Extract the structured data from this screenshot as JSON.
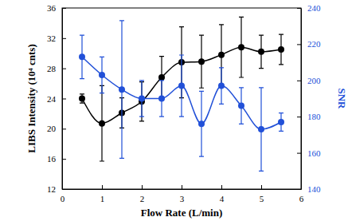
{
  "chart_data": {
    "type": "line",
    "x_label": "Flow Rate (L/min)",
    "y_label": "LIBS Intensity (10⁴ cnts)",
    "y2_label": "SNR",
    "x": [
      0.5,
      1.0,
      1.5,
      2.0,
      2.5,
      3.0,
      3.5,
      4.0,
      4.5,
      5.0,
      5.5
    ],
    "xlim": [
      0,
      6
    ],
    "xticks": [
      0,
      1,
      2,
      3,
      4,
      5,
      6
    ],
    "ylim": [
      12,
      36
    ],
    "yticks": [
      12,
      16,
      20,
      24,
      28,
      32,
      36
    ],
    "y2lim": [
      140,
      240
    ],
    "y2ticks": [
      140,
      160,
      180,
      200,
      220,
      240
    ],
    "series": [
      {
        "name": "LIBS Intensity",
        "color": "#000000",
        "marker": "circle",
        "line_style": "solid",
        "values": [
          24.0,
          20.7,
          22.1,
          23.6,
          26.8,
          28.8,
          28.9,
          29.8,
          30.8,
          30.2,
          30.5
        ],
        "errors": [
          0.6,
          5.0,
          2.0,
          2.6,
          2.8,
          4.7,
          3.5,
          4.0,
          4.0,
          2.2,
          2.0
        ]
      },
      {
        "name": "SNR",
        "color": "#2150d8",
        "marker": "circle",
        "line_style": "solid",
        "axis": "y2",
        "values": [
          213,
          203,
          195,
          190,
          190,
          197,
          176,
          197,
          186,
          173,
          177
        ],
        "errors": [
          12,
          10,
          38,
          10,
          10,
          17,
          18,
          10,
          10,
          23,
          5
        ]
      }
    ]
  }
}
